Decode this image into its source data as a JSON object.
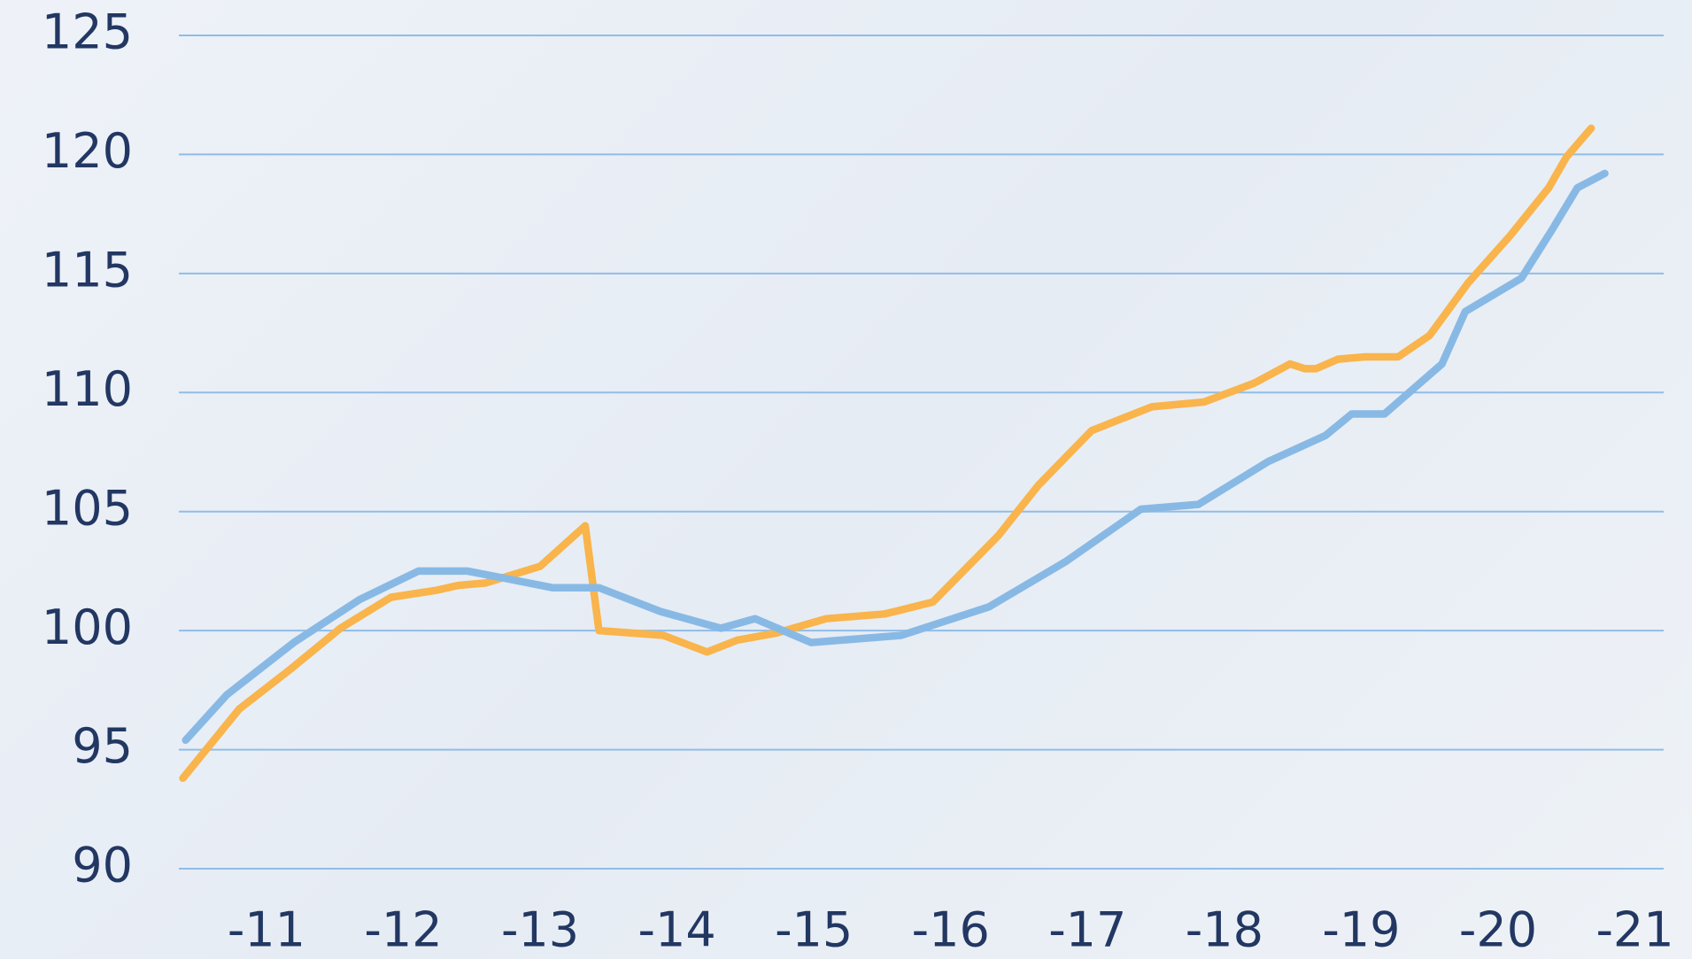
{
  "chart_data": {
    "type": "line",
    "xlim": [
      10.36,
      21.21
    ],
    "xticks": [
      {
        "value": 11,
        "label": "-11"
      },
      {
        "value": 12,
        "label": "-12"
      },
      {
        "value": 13,
        "label": "-13"
      },
      {
        "value": 14,
        "label": "-14"
      },
      {
        "value": 15,
        "label": "-15"
      },
      {
        "value": 16,
        "label": "-16"
      },
      {
        "value": 17,
        "label": "-17"
      },
      {
        "value": 18,
        "label": "-18"
      },
      {
        "value": 19,
        "label": "-19"
      },
      {
        "value": 20,
        "label": "-20"
      },
      {
        "value": 21,
        "label": "-21"
      }
    ],
    "ylim": [
      90,
      125
    ],
    "yticks": [
      90,
      95,
      100,
      105,
      110,
      115,
      120,
      125
    ],
    "grid": true,
    "series": [
      {
        "color": "#f9b44c",
        "x": [
          10.39,
          10.8,
          11.18,
          11.54,
          11.91,
          12.25,
          12.4,
          12.6,
          13.0,
          13.33,
          13.43,
          13.9,
          14.22,
          14.44,
          14.73,
          15.09,
          15.52,
          15.87,
          16.35,
          16.64,
          17.03,
          17.47,
          17.85,
          18.22,
          18.48,
          18.59,
          18.67,
          18.83,
          19.03,
          19.27,
          19.5,
          19.78,
          20.09,
          20.37,
          20.5,
          20.68
        ],
        "values": [
          93.8,
          96.7,
          98.4,
          100.1,
          101.4,
          101.7,
          101.9,
          102.0,
          102.7,
          104.4,
          100.0,
          99.8,
          99.1,
          99.6,
          99.9,
          100.5,
          100.7,
          101.2,
          104.0,
          106.1,
          108.4,
          109.4,
          109.6,
          110.4,
          111.2,
          111.0,
          111.0,
          111.4,
          111.5,
          111.5,
          112.4,
          114.6,
          116.6,
          118.6,
          119.9,
          121.1
        ]
      },
      {
        "color": "#88b9e5",
        "x": [
          10.41,
          10.71,
          11.2,
          11.68,
          12.11,
          12.47,
          12.74,
          13.09,
          13.43,
          13.88,
          14.32,
          14.57,
          14.98,
          15.64,
          16.28,
          16.84,
          17.39,
          17.81,
          18.32,
          18.74,
          18.93,
          19.17,
          19.59,
          19.76,
          20.17,
          20.39,
          20.58,
          20.78
        ],
        "values": [
          95.4,
          97.3,
          99.5,
          101.3,
          102.5,
          102.5,
          102.2,
          101.8,
          101.8,
          100.8,
          100.1,
          100.5,
          99.5,
          99.8,
          101.0,
          102.9,
          105.1,
          105.3,
          107.1,
          108.2,
          109.1,
          109.1,
          111.2,
          113.4,
          114.8,
          116.8,
          118.6,
          119.2
        ]
      }
    ]
  }
}
